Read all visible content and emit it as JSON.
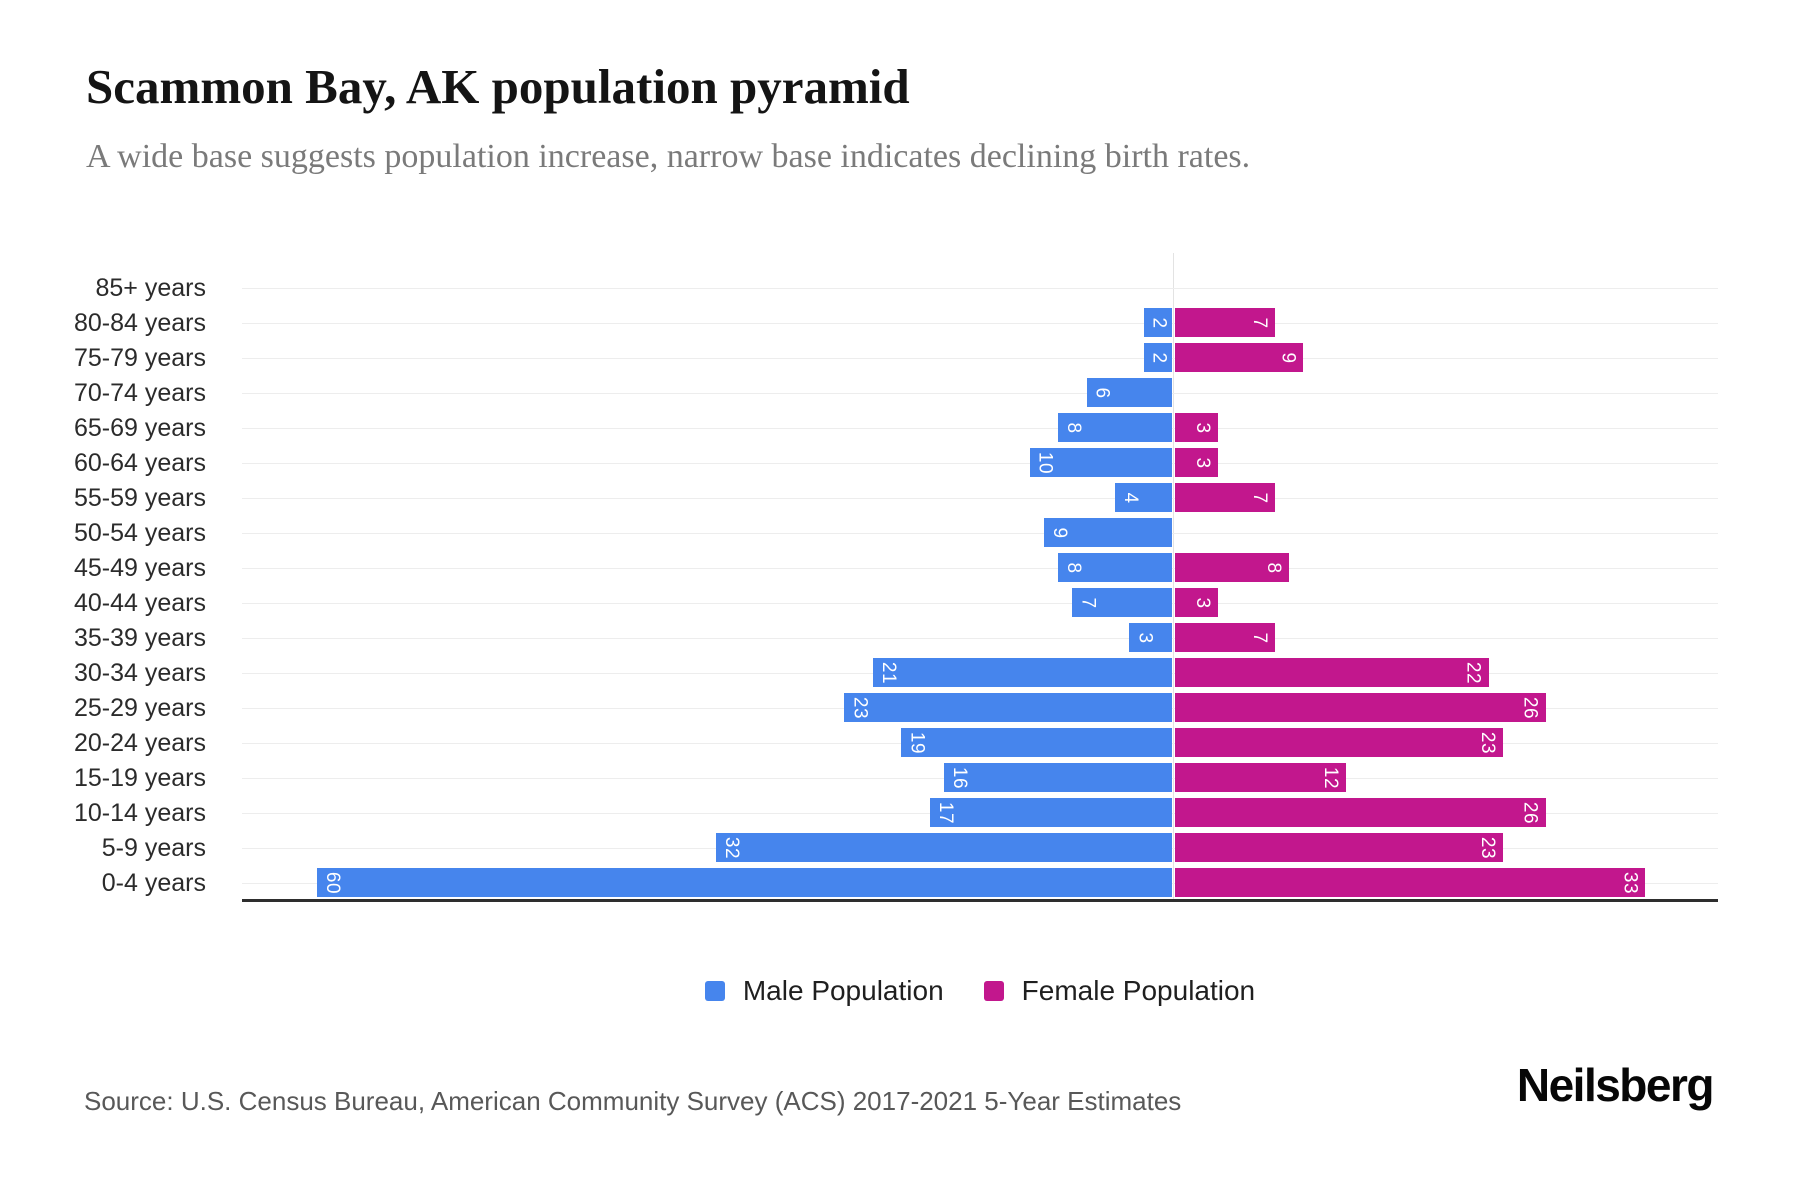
{
  "header": {
    "title": "Scammon Bay, AK population pyramid",
    "subtitle": "A wide base suggests population increase, narrow base indicates declining birth rates."
  },
  "chart_data": {
    "type": "bar",
    "variant": "population-pyramid",
    "title": "Scammon Bay, AK population pyramid",
    "categories": [
      "85+ years",
      "80-84 years",
      "75-79 years",
      "70-74 years",
      "65-69 years",
      "60-64 years",
      "55-59 years",
      "50-54 years",
      "45-49 years",
      "40-44 years",
      "35-39 years",
      "30-34 years",
      "25-29 years",
      "20-24 years",
      "15-19 years",
      "10-14 years",
      "5-9 years",
      "0-4 years"
    ],
    "series": [
      {
        "name": "Male Population",
        "color": "#4685ED",
        "values": [
          0,
          2,
          2,
          6,
          8,
          10,
          4,
          9,
          8,
          7,
          3,
          21,
          23,
          19,
          16,
          17,
          32,
          60
        ]
      },
      {
        "name": "Female Population",
        "color": "#C2178D",
        "values": [
          0,
          7,
          9,
          0,
          3,
          3,
          7,
          0,
          8,
          3,
          7,
          22,
          26,
          23,
          12,
          26,
          23,
          33
        ]
      }
    ],
    "value_labels": "inside-outer-end, rotated 90deg, white",
    "xlabel": "",
    "ylabel": "",
    "axis": {
      "orientation": "horizontal-diverging",
      "center_value": 0,
      "x_tick_labels": "none"
    },
    "grid": true,
    "legend_position": "bottom-center"
  },
  "legend": {
    "male_label": "Male Population",
    "female_label": "Female Population"
  },
  "colors": {
    "male": "#4685ED",
    "female": "#C2178D",
    "gridline": "#ededed",
    "center_line": "#e3e3e3",
    "baseline": "#2e2e2e"
  },
  "footer": {
    "source": "Source: U.S. Census Bureau, American Community Survey (ACS) 2017-2021 5-Year Estimates",
    "brand": "Neilsberg"
  }
}
